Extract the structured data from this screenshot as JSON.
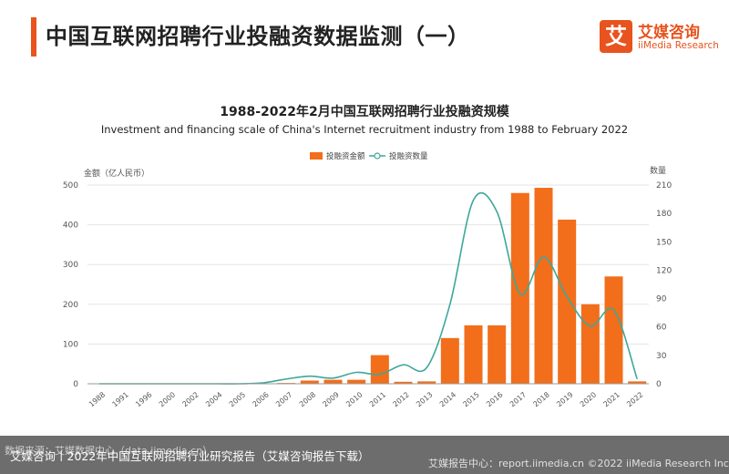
{
  "header": {
    "title": "中国互联网招聘行业投融资数据监测（一）",
    "logo": {
      "box_char": "艾",
      "cn": "艾媒咨询",
      "en": "iiMedia Research"
    }
  },
  "chart_data": {
    "type": "bar",
    "title": "1988-2022年2月中国互联网招聘行业投融资规模",
    "subtitle": "Investment and financing scale of China's Internet recruitment industry from 1988 to February 2022",
    "ylabel": "金额（亿人民币）",
    "y2label": "数量",
    "ylim": [
      0,
      500
    ],
    "y2lim": [
      0,
      210
    ],
    "yticks": [
      "0",
      "100",
      "200",
      "300",
      "400",
      "500"
    ],
    "y2ticks": [
      "0",
      "30",
      "60",
      "90",
      "120",
      "150",
      "180",
      "210"
    ],
    "categories": [
      "1988",
      "1991",
      "1996",
      "2000",
      "2002",
      "2004",
      "2005",
      "2006",
      "2007",
      "2008",
      "2009",
      "2010",
      "2011",
      "2012",
      "2013",
      "2014",
      "2015",
      "2016",
      "2017",
      "2018",
      "2019",
      "2020",
      "2021",
      "2022"
    ],
    "legend_position": "top",
    "grid": true,
    "series": [
      {
        "name": "投融资金额",
        "kind": "bar",
        "axis": "left",
        "values": [
          0,
          0,
          0,
          0,
          0,
          0,
          0,
          1,
          2,
          8,
          10,
          10,
          72,
          5,
          6,
          115,
          147,
          147,
          480,
          493,
          413,
          200,
          270,
          6
        ]
      },
      {
        "name": "投融资数量",
        "kind": "line",
        "axis": "right",
        "values": [
          0,
          0,
          0,
          0,
          0,
          0,
          0,
          1,
          5,
          8,
          6,
          12,
          10,
          20,
          17,
          84,
          194,
          182,
          95,
          134,
          92,
          61,
          78,
          5
        ]
      }
    ],
    "colors": {
      "bar": "#f26e1b",
      "line": "#3ea79b",
      "grid": "#e5e5e5"
    }
  },
  "footer": {
    "source": "数据来源：艾媒数据中心（data.iimedia.cn）",
    "caption": "艾媒咨询丨2022年中国互联网招聘行业研究报告（艾媒咨询报告下载）",
    "right": "艾媒报告中心：report.iimedia.cn  ©2022  iiMedia Research  Inc"
  }
}
